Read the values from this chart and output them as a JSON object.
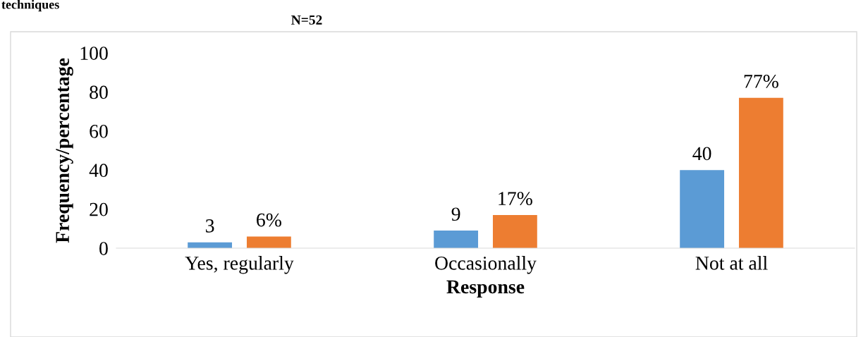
{
  "chart_data": {
    "type": "bar",
    "title": "N=52",
    "xlabel": "Response",
    "ylabel": "Frequency/percentage",
    "annotations": [
      "techniques"
    ],
    "categories": [
      "Yes, regularly",
      "Occasionally",
      "Not at all"
    ],
    "series": [
      {
        "color": "#5b9bd5",
        "values": [
          3,
          9,
          40
        ],
        "value_labels": [
          "3",
          "9",
          "40"
        ]
      },
      {
        "color": "#ed7d31",
        "values": [
          6,
          17,
          77
        ],
        "value_labels": [
          "6%",
          "17%",
          "77%"
        ]
      }
    ],
    "ylim": [
      0,
      100
    ],
    "yticks": [
      0,
      20,
      40,
      60,
      80,
      100
    ],
    "grid": false,
    "legend": false
  }
}
